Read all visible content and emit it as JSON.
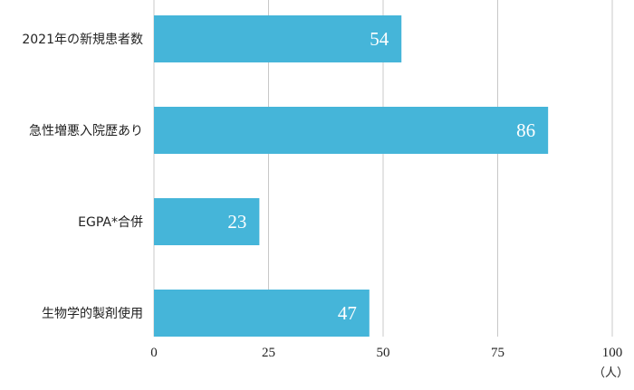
{
  "chart_data": {
    "type": "bar",
    "orientation": "horizontal",
    "categories": [
      "2021年の新規患者数",
      "急性増悪入院歴あり",
      "EGPA*合併",
      "生物学的製剤使用"
    ],
    "values": [
      54,
      86,
      23,
      47
    ],
    "value_labels": [
      "54",
      "86",
      "23",
      "47"
    ],
    "xlim": [
      0,
      100
    ],
    "xticks": [
      "0",
      "25",
      "50",
      "75",
      "100"
    ],
    "unit": "（人）",
    "grid": "vertical",
    "bar_color": "#45b5d9",
    "grid_color": "#c8c8c8"
  }
}
